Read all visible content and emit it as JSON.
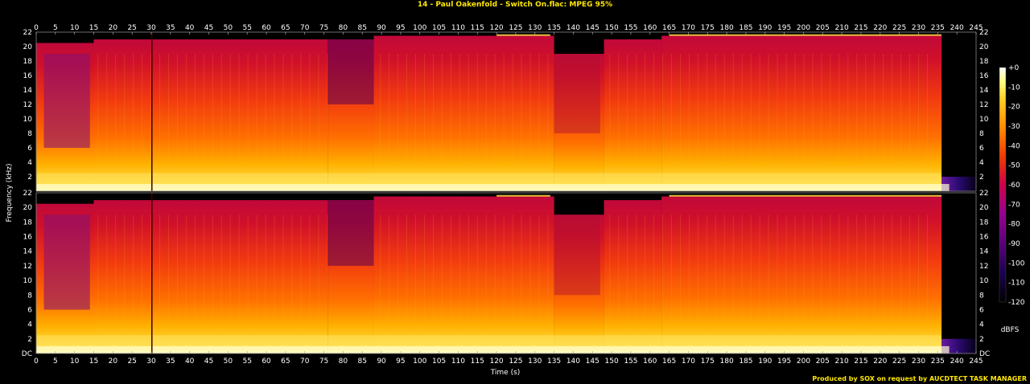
{
  "chart_data": {
    "type": "heatmap",
    "title": "14 - Paul Oakenfold - Switch On.flac: MPEG 95%",
    "xlabel": "Time (s)",
    "ylabel": "Frequency (kHz)",
    "xlim": [
      0,
      245
    ],
    "ylim_khz": [
      0,
      22
    ],
    "x_ticks": [
      "0",
      "5",
      "10",
      "15",
      "20",
      "25",
      "30",
      "35",
      "40",
      "45",
      "50",
      "55",
      "60",
      "65",
      "70",
      "75",
      "80",
      "85",
      "90",
      "95",
      "100",
      "105",
      "110",
      "115",
      "120",
      "125",
      "130",
      "135",
      "140",
      "145",
      "150",
      "155",
      "160",
      "165",
      "170",
      "175",
      "180",
      "185",
      "190",
      "195",
      "200",
      "205",
      "210",
      "215",
      "220",
      "225",
      "230",
      "235",
      "240",
      "245"
    ],
    "y_ticks": [
      "DC",
      "2",
      "4",
      "6",
      "8",
      "10",
      "12",
      "14",
      "16",
      "18",
      "20",
      "22"
    ],
    "channels": 2,
    "colorbar": {
      "label": "dBFS",
      "ticks": [
        "+0",
        "-10",
        "-20",
        "-30",
        "-40",
        "-50",
        "-60",
        "-70",
        "-80",
        "-90",
        "-100",
        "-110",
        "-120"
      ],
      "range": [
        -120,
        0
      ],
      "colors": [
        "#000000",
        "#1a0050",
        "#5a007a",
        "#9a0090",
        "#d0004a",
        "#f23a00",
        "#ff8a00",
        "#ffcc20",
        "#ffff80",
        "#ffffff"
      ]
    },
    "cutoff_khz_segments": [
      {
        "t": [
          0,
          15
        ],
        "khz": 20.5
      },
      {
        "t": [
          15,
          76
        ],
        "khz": 21
      },
      {
        "t": [
          76,
          88
        ],
        "khz": 21
      },
      {
        "t": [
          88,
          135
        ],
        "khz": 21.5
      },
      {
        "t": [
          135,
          148
        ],
        "khz": 19
      },
      {
        "t": [
          148,
          163
        ],
        "khz": 21
      },
      {
        "t": [
          163,
          236
        ],
        "khz": 21.5
      },
      {
        "t": [
          236,
          245
        ],
        "khz": 2
      }
    ],
    "credit": "Produced by SOX on request by AUCDTECT TASK MANAGER"
  }
}
